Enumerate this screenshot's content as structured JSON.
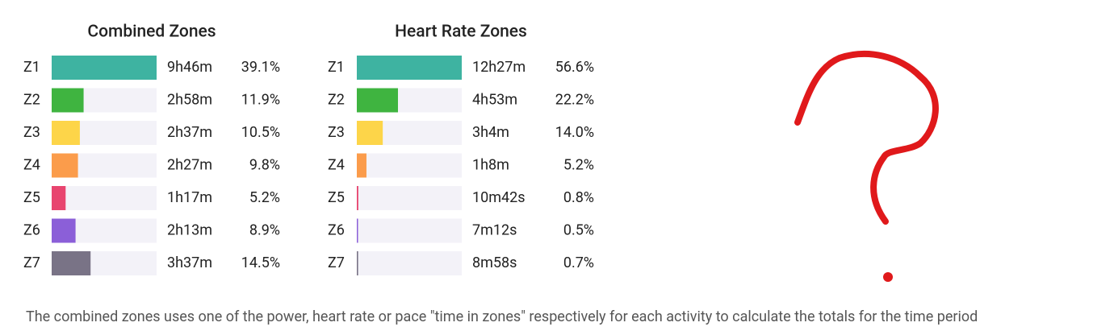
{
  "chart_data": [
    {
      "type": "bar",
      "orientation": "horizontal",
      "title": "Combined Zones",
      "categories": [
        "Z1",
        "Z2",
        "Z3",
        "Z4",
        "Z5",
        "Z6",
        "Z7"
      ],
      "times": [
        "9h46m",
        "2h58m",
        "2h37m",
        "2h27m",
        "1h17m",
        "2h13m",
        "3h37m"
      ],
      "values": [
        39.1,
        11.9,
        10.5,
        9.8,
        5.2,
        8.9,
        14.5
      ],
      "value_labels": [
        "39.1%",
        "11.9%",
        "10.5%",
        "9.8%",
        "5.2%",
        "8.9%",
        "14.5%"
      ],
      "colors": [
        "#3eb3a1",
        "#3fb440",
        "#fdd549",
        "#fb9c4b",
        "#e8456f",
        "#8b5fd8",
        "#797386"
      ],
      "xlim": [
        0,
        39.1
      ]
    },
    {
      "type": "bar",
      "orientation": "horizontal",
      "title": "Heart Rate Zones",
      "categories": [
        "Z1",
        "Z2",
        "Z3",
        "Z4",
        "Z5",
        "Z6",
        "Z7"
      ],
      "times": [
        "12h27m",
        "4h53m",
        "3h4m",
        "1h8m",
        "10m42s",
        "7m12s",
        "8m58s"
      ],
      "values": [
        56.6,
        22.2,
        14.0,
        5.2,
        0.8,
        0.5,
        0.7
      ],
      "value_labels": [
        "56.6%",
        "22.2%",
        "14.0%",
        "5.2%",
        "0.8%",
        "0.5%",
        "0.7%"
      ],
      "colors": [
        "#3eb3a1",
        "#3fb440",
        "#fdd549",
        "#fb9c4b",
        "#e8456f",
        "#8b5fd8",
        "#797386"
      ],
      "xlim": [
        0,
        56.6
      ]
    }
  ],
  "footnote": "The combined zones uses one of the power, heart rate or pace \"time in zones\" respectively for each activity to calculate the totals for the time period"
}
